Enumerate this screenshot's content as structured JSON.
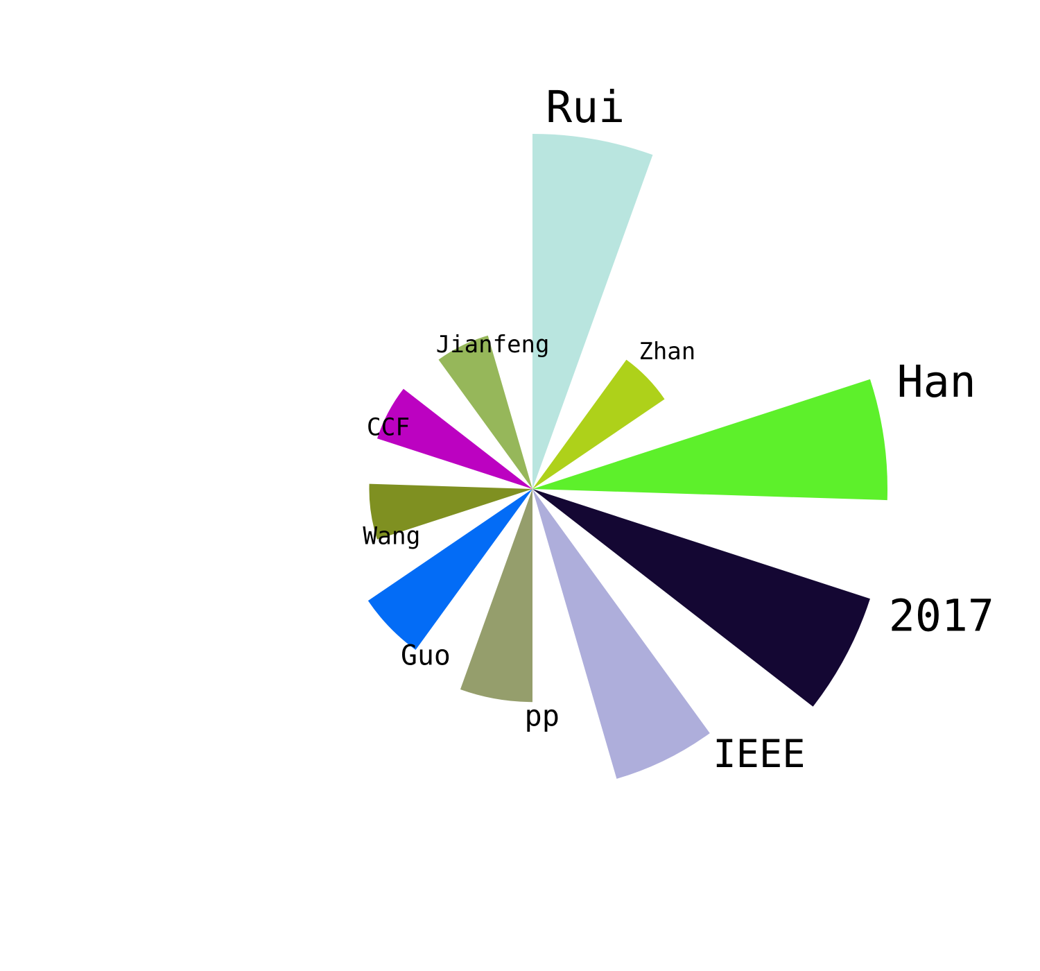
{
  "chart_data": {
    "type": "polar-bar",
    "start_angle_deg": 90,
    "direction": "clockwise",
    "gap_fraction": 0.45,
    "grid": false,
    "title": "",
    "segments": [
      {
        "label": "Rui",
        "value": 100,
        "color": "#b9e5df"
      },
      {
        "label": "Zhan",
        "value": 45,
        "color": "#aed11a"
      },
      {
        "label": "Han",
        "value": 100,
        "color": "#5df02b"
      },
      {
        "label": "2017",
        "value": 100,
        "color": "#140733"
      },
      {
        "label": "IEEE",
        "value": 85,
        "color": "#aeaedb"
      },
      {
        "label": "pp",
        "value": 60,
        "color": "#959e6c"
      },
      {
        "label": "Guo",
        "value": 56,
        "color": "#036cf6"
      },
      {
        "label": "Wang",
        "value": 46,
        "color": "#7f9021"
      },
      {
        "label": "CCF",
        "value": 46,
        "color": "#bc02c1"
      },
      {
        "label": "Jianfeng",
        "value": 45,
        "color": "#96b75a"
      }
    ]
  }
}
